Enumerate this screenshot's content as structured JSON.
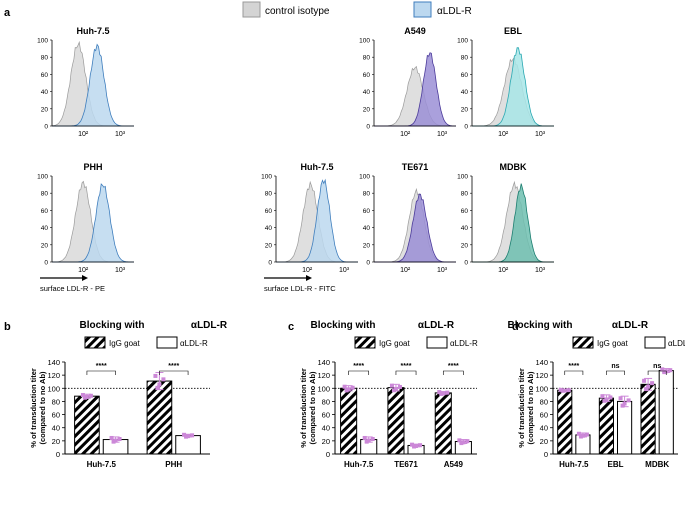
{
  "panel_labels": {
    "a": "a",
    "b": "b",
    "c": "c",
    "d": "d"
  },
  "legend_top": {
    "control": "control isotype",
    "anti": "αLDL-R"
  },
  "colors": {
    "grey": "#d4d4d4",
    "greyLine": "#9a9a9a",
    "lightblue": "#bcd8ef",
    "lightblueLine": "#3f7ebd",
    "purple": "#9b8fd6",
    "purpleLine": "#4b3a9a",
    "cyan": "#a8e6e8",
    "cyanLine": "#2aa8b2",
    "teal": "#6fc0b0",
    "tealLine": "#1c7e70",
    "pink": "#cc88d8"
  },
  "histograms": [
    {
      "title": "Huh-7.5",
      "x_ticks": [
        "10²",
        "10³"
      ],
      "y_ticks": [
        "100",
        "80",
        "60",
        "40",
        "20",
        "0"
      ],
      "axis_label": "",
      "series_color": "lightblue"
    },
    {
      "title": "A549",
      "x_ticks": [
        "10²",
        "10³"
      ],
      "y_ticks": [
        "100",
        "80",
        "60",
        "40",
        "20",
        "0"
      ],
      "axis_label": "",
      "series_color": "purple"
    },
    {
      "title": "EBL",
      "x_ticks": [
        "10²",
        "10³"
      ],
      "y_ticks": [
        "100",
        "80",
        "60",
        "40",
        "20",
        "0"
      ],
      "axis_label": "",
      "series_color": "cyan"
    },
    {
      "title": "PHH",
      "x_ticks": [
        "10²",
        "10³"
      ],
      "y_ticks": [
        "100",
        "80",
        "60",
        "40",
        "20",
        "0"
      ],
      "axis_label": "surface LDL-R - PE",
      "series_color": "lightblue"
    },
    {
      "title": "Huh-7.5",
      "x_ticks": [
        "10²",
        "10³"
      ],
      "y_ticks": [
        "100",
        "80",
        "60",
        "40",
        "20",
        "0"
      ],
      "axis_label": "surface LDL-R - FITC",
      "series_color": "lightblue"
    },
    {
      "title": "TE671",
      "x_ticks": [
        "10²",
        "10³"
      ],
      "y_ticks": [
        "100",
        "80",
        "60",
        "40",
        "20",
        "0"
      ],
      "axis_label": "",
      "series_color": "purple"
    },
    {
      "title": "MDBK",
      "x_ticks": [
        "10²",
        "10³"
      ],
      "y_ticks": [
        "100",
        "80",
        "60",
        "40",
        "20",
        "0"
      ],
      "axis_label": "",
      "series_color": "teal"
    }
  ],
  "chart_data": [
    {
      "panel": "b",
      "type": "bar",
      "title_left": "Blocking with",
      "title_right": "αLDL-R",
      "legend": [
        "IgG goat",
        "αLDL-R"
      ],
      "ylabel": "% of transduction titer (compared to no Ab)",
      "ylim": [
        0,
        140
      ],
      "y_ticks": [
        "140",
        "120",
        "100",
        "80",
        "60",
        "40",
        "20",
        "0"
      ],
      "reference_line": 100,
      "categories": [
        "Huh-7.5",
        "PHH"
      ],
      "series": [
        {
          "name": "IgG goat",
          "values": [
            88,
            111
          ],
          "errors": [
            3,
            13
          ]
        },
        {
          "name": "αLDL-R",
          "values": [
            22,
            28
          ],
          "errors": [
            4,
            2
          ]
        }
      ],
      "significance": [
        "****",
        "****"
      ]
    },
    {
      "panel": "c",
      "type": "bar",
      "title_left": "Blocking with",
      "title_right": "αLDL-R",
      "legend": [
        "IgG goat",
        "αLDL-R"
      ],
      "ylabel": "% of transduction titer (compared to no Ab)",
      "ylim": [
        0,
        140
      ],
      "y_ticks": [
        "140",
        "120",
        "100",
        "80",
        "60",
        "40",
        "20",
        "0"
      ],
      "reference_line": 100,
      "categories": [
        "Huh-7.5",
        "TE671",
        "A549"
      ],
      "series": [
        {
          "name": "IgG goat",
          "values": [
            100,
            101,
            93
          ],
          "errors": [
            4,
            5,
            2
          ]
        },
        {
          "name": "αLDL-R",
          "values": [
            22,
            13,
            19
          ],
          "errors": [
            4,
            2,
            3
          ]
        }
      ],
      "significance": [
        "****",
        "****",
        "****"
      ]
    },
    {
      "panel": "d",
      "type": "bar",
      "title_left": "Blocking with",
      "title_right": "αLDL-R",
      "legend": [
        "IgG goat",
        "αLDL-R"
      ],
      "ylabel": "% of transduction titer (compared to no Ab)",
      "ylim": [
        0,
        140
      ],
      "y_ticks": [
        "140",
        "120",
        "100",
        "80",
        "60",
        "40",
        "20",
        "0"
      ],
      "reference_line": 100,
      "categories": [
        "Huh-7.5",
        "EBL",
        "MDBK"
      ],
      "series": [
        {
          "name": "IgG goat",
          "values": [
            97,
            85,
            106
          ],
          "errors": [
            1,
            5,
            9
          ]
        },
        {
          "name": "αLDL-R",
          "values": [
            29,
            80,
            127
          ],
          "errors": [
            3,
            8,
            3
          ]
        }
      ],
      "significance": [
        "****",
        "ns",
        "ns"
      ]
    }
  ]
}
